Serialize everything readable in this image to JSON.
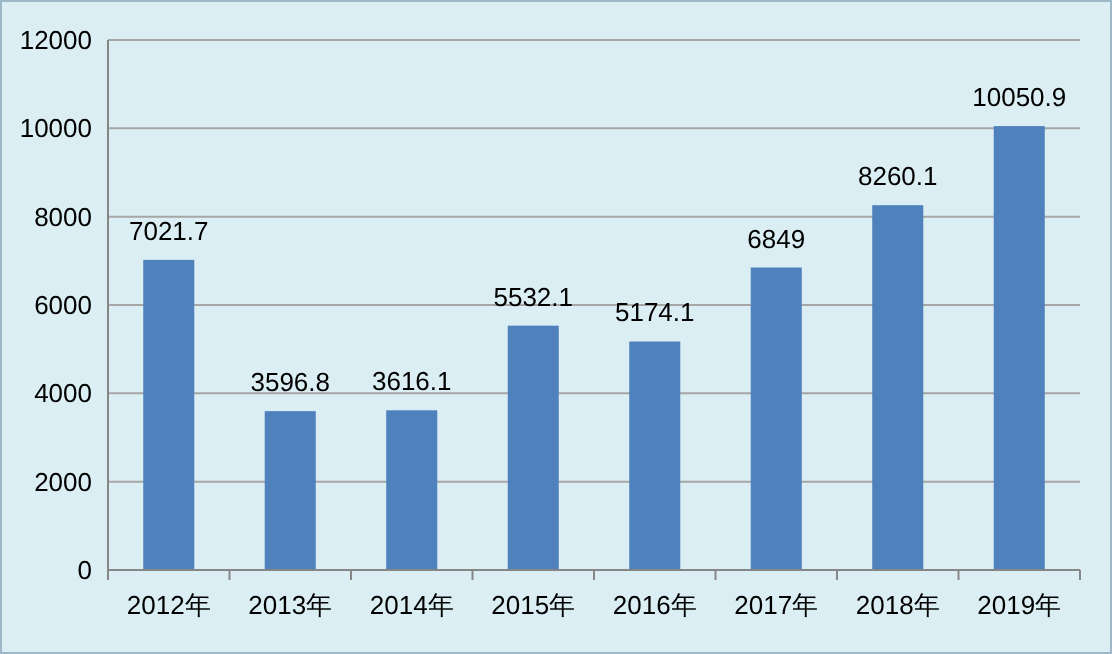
{
  "chart_data": {
    "type": "bar",
    "categories": [
      "2012年",
      "2013年",
      "2014年",
      "2015年",
      "2016年",
      "2017年",
      "2018年",
      "2019年"
    ],
    "values": [
      7021.7,
      3596.8,
      3616.1,
      5532.1,
      5174.1,
      6849,
      8260.1,
      10050.9
    ],
    "color": "#4f81bd",
    "ylim": [
      0,
      12000
    ],
    "yticks": [
      0,
      2000,
      4000,
      6000,
      8000,
      10000,
      12000
    ],
    "grid": "y",
    "data_labels": true
  }
}
